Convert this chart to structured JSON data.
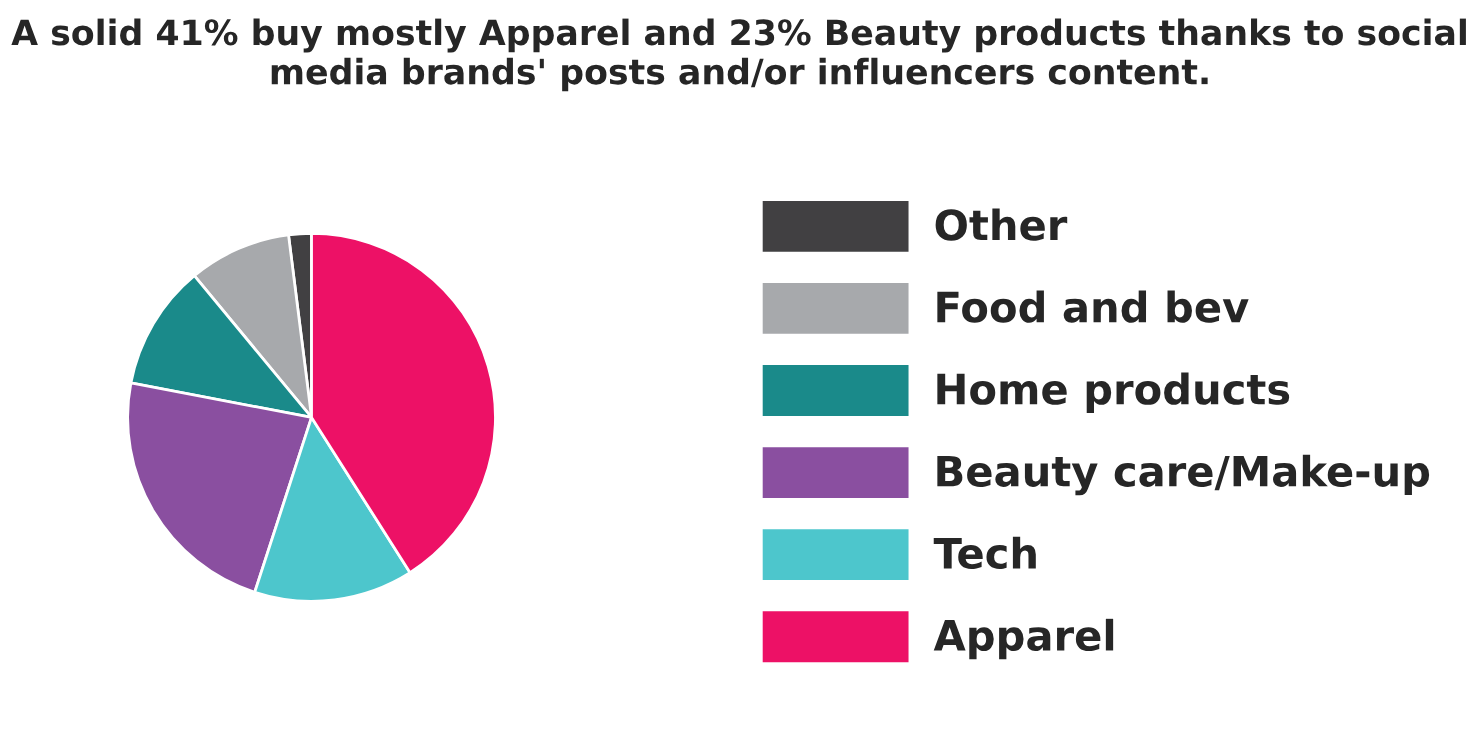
{
  "chart_data": {
    "type": "pie",
    "title": "A solid 41% buy mostly Apparel and 23% Beauty products thanks to social media brands' posts and/or influencers content.",
    "categories": [
      "Other",
      "Food and bev",
      "Home products",
      "Beauty care/Make-up",
      "Tech",
      "Apparel"
    ],
    "values": [
      2,
      9,
      11,
      23,
      14,
      41
    ],
    "colors": [
      "#414042",
      "#a7a9ac",
      "#1a8a8a",
      "#8a4fa0",
      "#4dc6cc",
      "#ed1166"
    ],
    "legend": "right"
  }
}
